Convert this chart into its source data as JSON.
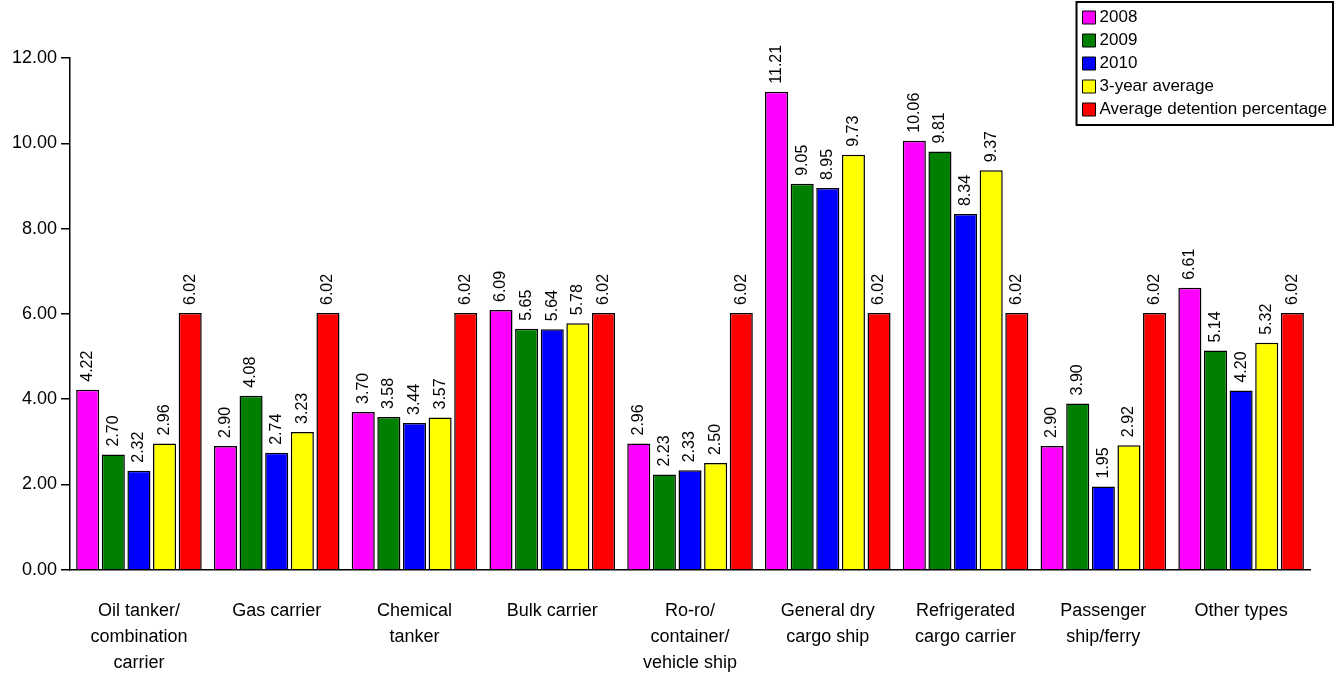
{
  "chart_data": {
    "type": "bar",
    "categories": [
      "Oil tanker/ combination carrier",
      "Gas carrier",
      "Chemical tanker",
      "Bulk carrier",
      "Ro-ro/ container/ vehicle ship",
      "General dry cargo ship",
      "Refrigerated cargo carrier",
      "Passenger ship/ferry",
      "Other types"
    ],
    "series": [
      {
        "name": "2008",
        "color": "#ff00ff",
        "values": [
          4.22,
          2.9,
          3.7,
          6.09,
          2.96,
          11.21,
          10.06,
          2.9,
          6.61
        ],
        "value_labels": [
          "4.22",
          "2.90",
          "3.70",
          "6.09",
          "2.96",
          "11.21",
          "10.06",
          "2.90",
          "6.61"
        ]
      },
      {
        "name": "2009",
        "color": "#008000",
        "values": [
          2.7,
          4.08,
          3.58,
          5.65,
          2.23,
          9.05,
          9.81,
          3.9,
          5.14
        ],
        "value_labels": [
          "2.70",
          "4.08",
          "3.58",
          "5.65",
          "2.23",
          "9.05",
          "9.81",
          "3.90",
          "5.14"
        ]
      },
      {
        "name": "2010",
        "color": "#0000ff",
        "values": [
          2.32,
          2.74,
          3.44,
          5.64,
          2.33,
          8.95,
          8.34,
          1.95,
          4.2
        ],
        "value_labels": [
          "2.32",
          "2.74",
          "3.44",
          "5.64",
          "2.33",
          "8.95",
          "8.34",
          "1.95",
          "4.20"
        ]
      },
      {
        "name": "3-year average",
        "color": "#ffff00",
        "values": [
          2.96,
          3.23,
          3.57,
          5.78,
          2.5,
          9.73,
          9.37,
          2.92,
          5.32
        ],
        "value_labels": [
          "2.96",
          "3.23",
          "3.57",
          "5.78",
          "2.50",
          "9.73",
          "9.37",
          "2.92",
          "5.32"
        ]
      },
      {
        "name": "Average detention percentage",
        "color": "#ff0000",
        "values": [
          6.02,
          6.02,
          6.02,
          6.02,
          6.02,
          6.02,
          6.02,
          6.02,
          6.02
        ],
        "value_labels": [
          "6.02",
          "6.02",
          "6.02",
          "6.02",
          "6.02",
          "6.02",
          "6.02",
          "6.02",
          "6.02"
        ]
      }
    ],
    "ylim": [
      0,
      12
    ],
    "yticks": [
      {
        "value": 0,
        "label": "0.00"
      },
      {
        "value": 2,
        "label": "2.00"
      },
      {
        "value": 4,
        "label": "4.00"
      },
      {
        "value": 6,
        "label": "6.00"
      },
      {
        "value": 8,
        "label": "8.00"
      },
      {
        "value": 10,
        "label": "10.00"
      },
      {
        "value": 12,
        "label": "12.00"
      }
    ],
    "legend": "top right"
  }
}
